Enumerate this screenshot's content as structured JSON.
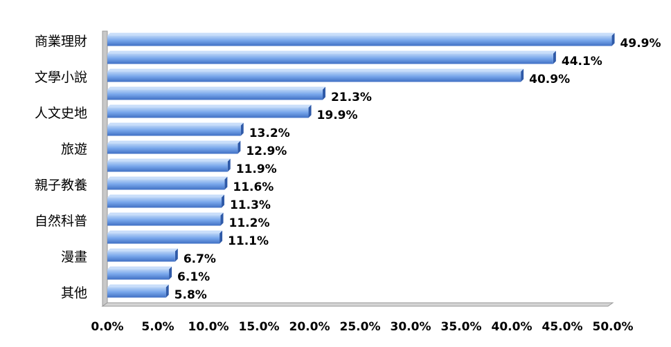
{
  "chart_data": {
    "type": "bar",
    "orientation": "horizontal",
    "bar_style": "3d",
    "categories": [
      "商業理財",
      "",
      "文學小說",
      "",
      "人文史地",
      "",
      "旅遊",
      "",
      "親子教養",
      "",
      "自然科普",
      "",
      "漫畫",
      "",
      "其他"
    ],
    "values": [
      49.9,
      44.1,
      40.9,
      21.3,
      19.9,
      13.2,
      12.9,
      11.9,
      11.6,
      11.3,
      11.2,
      11.1,
      6.7,
      6.1,
      5.8
    ],
    "value_labels": [
      "49.9%",
      "44.1%",
      "40.9%",
      "21.3%",
      "19.9%",
      "13.2%",
      "12.9%",
      "11.9%",
      "11.6%",
      "11.3%",
      "11.2%",
      "11.1%",
      "6.7%",
      "6.1%",
      "5.8%"
    ],
    "xlim": [
      0,
      50
    ],
    "x_ticks": [
      "0.0%",
      "5.0%",
      "10.0%",
      "15.0%",
      "20.0%",
      "25.0%",
      "30.0%",
      "35.0%",
      "40.0%",
      "45.0%",
      "50.0%"
    ],
    "title": "",
    "xlabel": "",
    "ylabel": "",
    "grid": false,
    "legend": "none",
    "colors": {
      "bar_top": "#b9d3f6",
      "bar_mid": "#7aa8ec",
      "bar_bottom": "#3f6fc4",
      "bar_side": "#2f5aa8",
      "wall": "#c8c8c8",
      "wall_dark": "#9a9a9a"
    }
  }
}
